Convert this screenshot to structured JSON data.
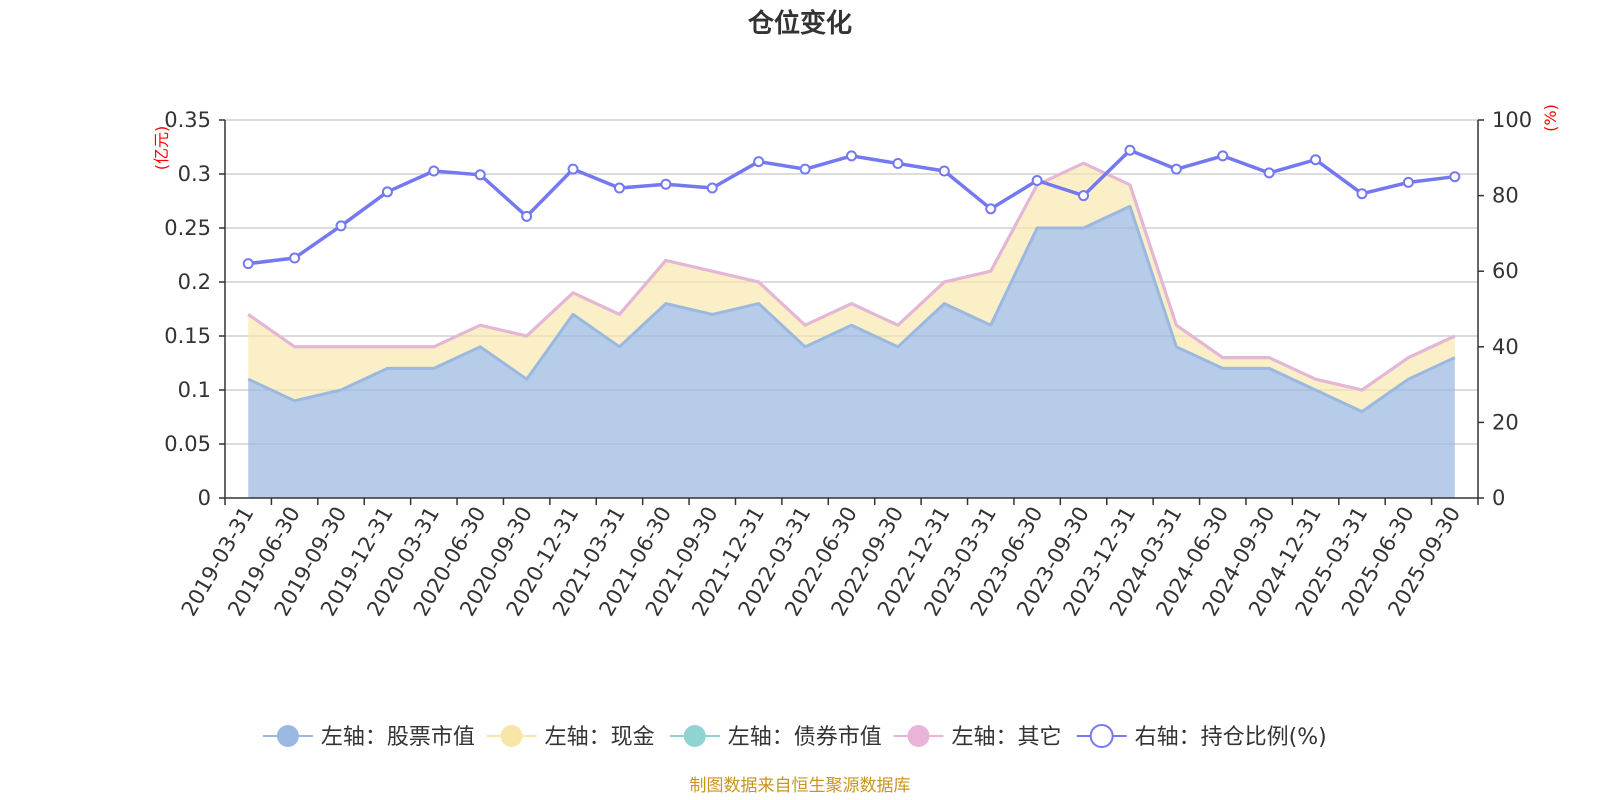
{
  "chart_data": {
    "type": "area",
    "title": "仓位变化",
    "source": "制图数据来自恒生聚源数据库",
    "left_axis": {
      "unit": "(亿元)",
      "ylim": [
        0,
        0.35
      ],
      "ticks": [
        0,
        0.05,
        0.1,
        0.15,
        0.2,
        0.25,
        0.3,
        0.35
      ],
      "tick_labels": [
        "0",
        "0.05",
        "0.1",
        "0.15",
        "0.2",
        "0.25",
        "0.3",
        "0.35"
      ]
    },
    "right_axis": {
      "unit": "(%)",
      "ylim": [
        0,
        100
      ],
      "ticks": [
        0,
        20,
        40,
        60,
        80,
        100
      ],
      "tick_labels": [
        "0",
        "20",
        "40",
        "60",
        "80",
        "100"
      ]
    },
    "categories": [
      "2019-03-31",
      "2019-06-30",
      "2019-09-30",
      "2019-12-31",
      "2020-03-31",
      "2020-06-30",
      "2020-09-30",
      "2020-12-31",
      "2021-03-31",
      "2021-06-30",
      "2021-09-30",
      "2021-12-31",
      "2022-03-31",
      "2022-06-30",
      "2022-09-30",
      "2022-12-31",
      "2023-03-31",
      "2023-06-30",
      "2023-09-30",
      "2023-12-31",
      "2024-03-31",
      "2024-06-30",
      "2024-09-30",
      "2024-12-31",
      "2025-03-31",
      "2025-06-30",
      "2025-09-30"
    ],
    "series": [
      {
        "name": "左轴：股票市值",
        "axis": "left",
        "color": "#9bb8e0",
        "values": [
          0.11,
          0.09,
          0.1,
          0.12,
          0.12,
          0.14,
          0.11,
          0.17,
          0.14,
          0.18,
          0.17,
          0.18,
          0.14,
          0.16,
          0.14,
          0.18,
          0.16,
          0.25,
          0.25,
          0.27,
          0.14,
          0.12,
          0.12,
          0.1,
          0.08,
          0.11,
          0.13
        ]
      },
      {
        "name": "左轴：现金",
        "axis": "left",
        "color": "#f8e6a8",
        "values": [
          0.06,
          0.05,
          0.04,
          0.02,
          0.02,
          0.02,
          0.04,
          0.02,
          0.03,
          0.04,
          0.04,
          0.02,
          0.02,
          0.02,
          0.02,
          0.02,
          0.05,
          0.04,
          0.06,
          0.02,
          0.02,
          0.01,
          0.01,
          0.01,
          0.02,
          0.02,
          0.02
        ]
      },
      {
        "name": "左轴：债券市值",
        "axis": "left",
        "color": "#8fd3d3",
        "values": [
          0,
          0,
          0,
          0,
          0,
          0,
          0,
          0,
          0,
          0,
          0,
          0,
          0,
          0,
          0,
          0,
          0,
          0,
          0,
          0,
          0,
          0,
          0,
          0,
          0,
          0,
          0
        ]
      },
      {
        "name": "左轴：其它",
        "axis": "left",
        "color": "#e8b4d8",
        "values": [
          0,
          0,
          0,
          0,
          0,
          0,
          0,
          0,
          0,
          0,
          0,
          0,
          0,
          0,
          0,
          0,
          0,
          0,
          0,
          0,
          0,
          0,
          0,
          0,
          0,
          0,
          0
        ]
      },
      {
        "name": "右轴：持仓比例(%)",
        "axis": "right",
        "color": "#7479f0",
        "values": [
          62,
          63.5,
          72,
          81,
          86.5,
          85.5,
          74.5,
          87,
          82,
          83,
          82,
          89,
          87,
          90.5,
          88.5,
          86.5,
          76.5,
          84,
          80,
          92,
          87,
          90.5,
          86,
          89.5,
          80.5,
          83.5,
          85
        ]
      }
    ],
    "grid": true,
    "legend_position": "bottom"
  }
}
